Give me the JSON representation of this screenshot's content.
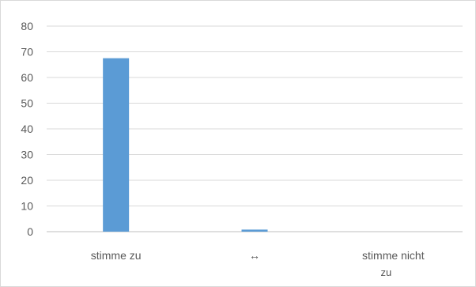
{
  "chart_data": {
    "type": "bar",
    "categories": [
      "stimme zu",
      "↔",
      "stimme nicht zu"
    ],
    "category_label_lines": [
      [
        "stimme zu"
      ],
      [
        "↔"
      ],
      [
        "stimme nicht",
        "zu"
      ]
    ],
    "values": [
      67.5,
      0.8,
      0
    ],
    "title": "",
    "xlabel": "",
    "ylabel": "",
    "ylim": [
      0,
      80
    ],
    "yticks": [
      0,
      10,
      20,
      30,
      40,
      50,
      60,
      70,
      80
    ],
    "grid": true,
    "legend": "none",
    "bar_color": "#5b9bd5",
    "grid_color": "#d9d9d9",
    "axis_color": "#bfbfbf",
    "label_color": "#595959"
  }
}
